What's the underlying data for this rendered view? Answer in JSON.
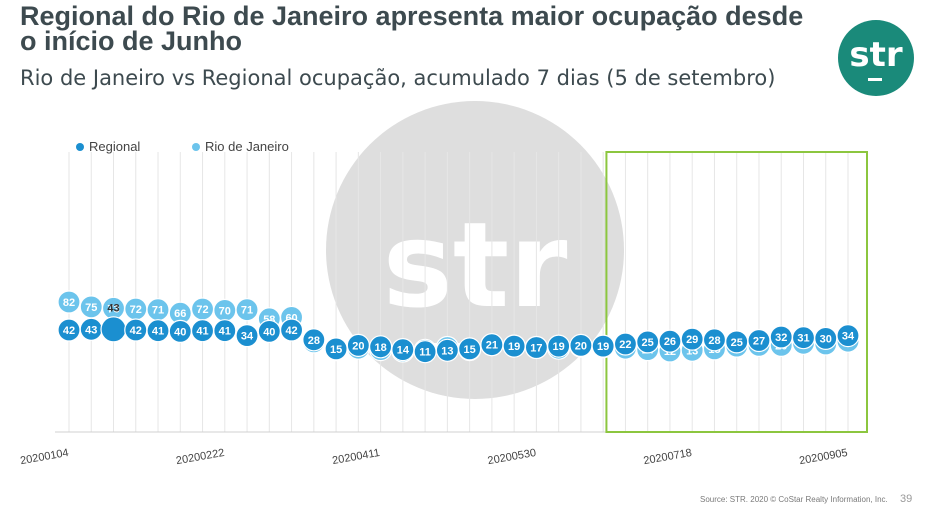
{
  "title": "Regional do Rio de Janeiro apresenta maior ocupação desde o início de Junho",
  "subtitle": "Rio de Janeiro vs Regional ocupação, acumulado 7 dias (5 de setembro)",
  "logo_text": "str",
  "watermark_text": "str",
  "source": "Source: STR. 2020 © CoStar Realty Information, Inc.",
  "page_number": "39",
  "colors": {
    "regional": "#1b8fd0",
    "rio": "#6cc4ec",
    "highlight_box": "#8cc63f",
    "brand": "#1a8a7a"
  },
  "chart_data": {
    "type": "scatter",
    "title": "",
    "xlabel": "",
    "ylabel": "",
    "ylim": [
      0,
      90
    ],
    "grid": "vertical",
    "legend": "top-left",
    "x_tick_labels": [
      "20200104",
      "20200222",
      "20200411",
      "20200530",
      "20200718",
      "20200905"
    ],
    "x_tick_index": [
      0,
      7,
      14,
      21,
      28,
      35
    ],
    "highlight_range": [
      25,
      35
    ],
    "annotations": [
      {
        "index": 2,
        "text": "43"
      }
    ],
    "series": [
      {
        "name": "Regional",
        "values": [
          42,
          43,
          43,
          42,
          41,
          40,
          41,
          41,
          34,
          40,
          42,
          28,
          15,
          20,
          18,
          14,
          11,
          13,
          15,
          21,
          19,
          17,
          19,
          20,
          19,
          22,
          25,
          26,
          29,
          28,
          25,
          27,
          32,
          31,
          30,
          34
        ],
        "labels": [
          "42",
          "43",
          "",
          "42",
          "41",
          "40",
          "41",
          "41",
          "34",
          "40",
          "42",
          "28",
          "15",
          "20",
          "18",
          "14",
          "11",
          "13",
          "15",
          "21",
          "19",
          "17",
          "19",
          "20",
          "19",
          "22",
          "25",
          "26",
          "29",
          "28",
          "25",
          "27",
          "32",
          "31",
          "30",
          "34"
        ]
      },
      {
        "name": "Rio de Janeiro",
        "values": [
          82,
          75,
          73,
          72,
          71,
          66,
          72,
          70,
          71,
          58,
          60,
          25,
          14,
          16,
          14,
          12,
          13,
          17,
          14,
          21,
          19,
          17,
          16,
          19,
          18,
          16,
          14,
          12,
          13,
          15,
          19,
          20,
          20,
          23,
          22,
          26
        ],
        "labels": [
          "82",
          "75",
          "73",
          "72",
          "71",
          "66",
          "72",
          "70",
          "71",
          "58",
          "60",
          "25",
          "14",
          "16",
          "14",
          "12",
          "13",
          "17",
          "14",
          "21",
          "19",
          "17",
          "16",
          "19",
          "18",
          "16",
          "14",
          "12",
          "13",
          "15",
          "19",
          "20",
          "20",
          "23",
          "22",
          "26"
        ]
      }
    ]
  }
}
